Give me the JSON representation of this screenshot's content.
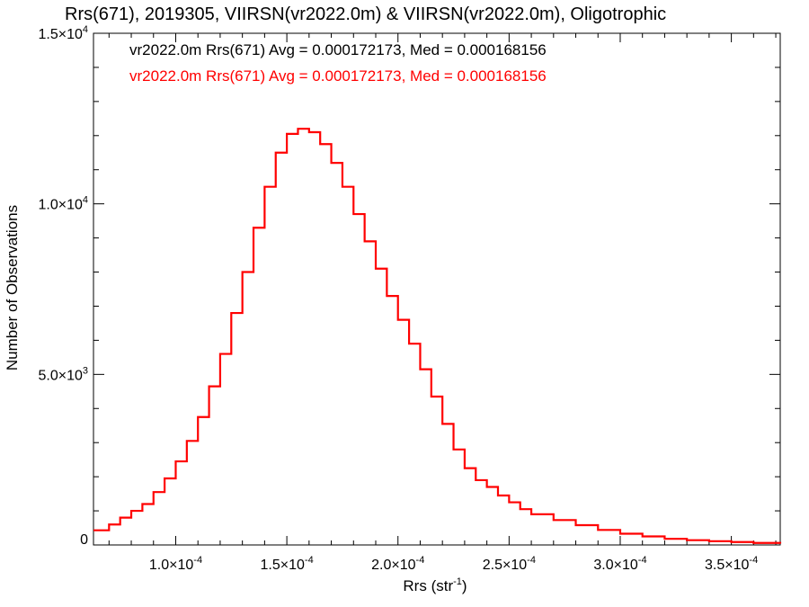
{
  "chart_data": {
    "type": "line",
    "title": "Rrs(671), 2019305, VIIRSN(vr2022.0m) & VIIRSN(vr2022.0m), Oligotrophic",
    "xlabel": "Rrs (str",
    "xlabel_sup": "-1",
    "xlabel_close": ")",
    "ylabel": "Number of Observations",
    "xlim": [
      6.3e-05,
      0.000372
    ],
    "ylim": [
      0,
      15000
    ],
    "grid": false,
    "x_ticks": [
      {
        "value": 0.0001,
        "mant": "1.0×10",
        "exp": "-4"
      },
      {
        "value": 0.00015,
        "mant": "1.5×10",
        "exp": "-4"
      },
      {
        "value": 0.0002,
        "mant": "2.0×10",
        "exp": "-4"
      },
      {
        "value": 0.00025,
        "mant": "2.5×10",
        "exp": "-4"
      },
      {
        "value": 0.0003,
        "mant": "3.0×10",
        "exp": "-4"
      },
      {
        "value": 0.00035,
        "mant": "3.5×10",
        "exp": "-4"
      }
    ],
    "y_ticks": [
      {
        "value": 0,
        "mant": "0",
        "exp": ""
      },
      {
        "value": 5000,
        "mant": "5.0×10",
        "exp": "3"
      },
      {
        "value": 10000,
        "mant": "1.0×10",
        "exp": "4"
      },
      {
        "value": 15000,
        "mant": "1.5×10",
        "exp": "4"
      }
    ],
    "annotations": [
      {
        "text": "vr2022.0m Rrs(671) Avg = 0.000172173, Med = 0.000168156",
        "color": "#000000"
      },
      {
        "text": "vr2022.0m Rrs(671) Avg = 0.000172173, Med = 0.000168156",
        "color": "#ff0000"
      }
    ],
    "series": [
      {
        "color": "#ff0000",
        "style": "step",
        "x": [
          6.3e-05,
          7e-05,
          7.5e-05,
          8e-05,
          8.5e-05,
          9e-05,
          9.5e-05,
          0.0001,
          0.000105,
          0.00011,
          0.000115,
          0.00012,
          0.000125,
          0.00013,
          0.000135,
          0.00014,
          0.000145,
          0.00015,
          0.000155,
          0.00016,
          0.000165,
          0.00017,
          0.000175,
          0.00018,
          0.000185,
          0.00019,
          0.000195,
          0.0002,
          0.000205,
          0.00021,
          0.000215,
          0.00022,
          0.000225,
          0.00023,
          0.000235,
          0.00024,
          0.000245,
          0.00025,
          0.000255,
          0.00026,
          0.00027,
          0.00028,
          0.00029,
          0.0003,
          0.00031,
          0.00032,
          0.00033,
          0.00034,
          0.00035,
          0.00036,
          0.000372
        ],
        "values": [
          430,
          600,
          800,
          1000,
          1200,
          1550,
          1950,
          2450,
          3050,
          3750,
          4650,
          5600,
          6800,
          8000,
          9300,
          10500,
          11500,
          12050,
          12200,
          12100,
          11750,
          11200,
          10500,
          9700,
          8900,
          8100,
          7300,
          6600,
          5900,
          5150,
          4350,
          3550,
          2800,
          2250,
          1900,
          1700,
          1450,
          1250,
          1050,
          900,
          730,
          580,
          440,
          330,
          250,
          180,
          140,
          110,
          85,
          60,
          40
        ]
      }
    ]
  }
}
